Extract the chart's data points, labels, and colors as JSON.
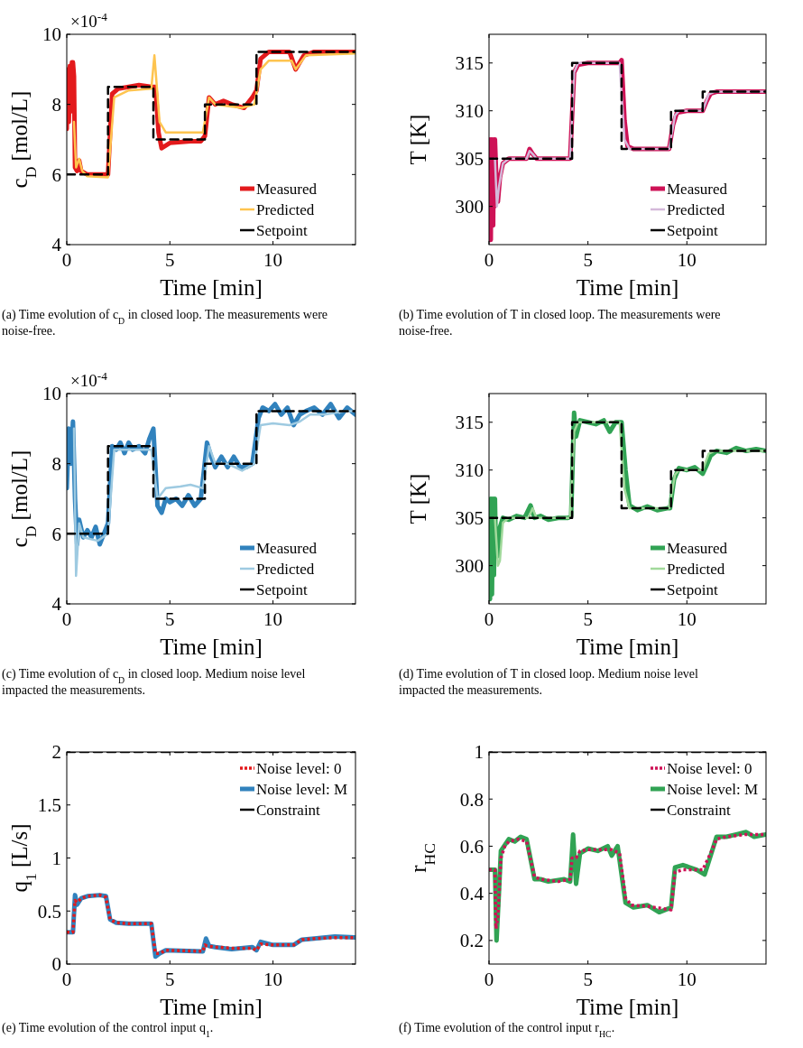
{
  "chart_data": [
    {
      "type": "line",
      "ylabel": "c$_{D}$ [mol/L]",
      "xlabel": "Time [min]",
      "xlim": [
        0,
        14
      ],
      "xticks": [
        0,
        5,
        10
      ],
      "ylim": [
        4,
        10
      ],
      "yticks": [
        4,
        6,
        8,
        10
      ],
      "legend": "bottom right",
      "annotations": [
        "×10$^{-4}$",
        "(a) Time evolution of c$_{D}$ in closed loop. The measurements were noise-free."
      ],
      "series": [
        {
          "name": "Measured",
          "color": "#e31a1c",
          "line_style": "solid",
          "x": [
            0,
            0.05,
            0.1,
            0.15,
            0.2,
            0.25,
            0.3,
            0.35,
            0.4,
            0.5,
            0.6,
            0.7,
            1,
            1.5,
            2,
            2.2,
            2.5,
            3,
            3.5,
            4.1,
            4.3,
            4.45,
            4.6,
            5,
            6,
            6.5,
            6.7,
            6.9,
            7.2,
            7.6,
            8,
            8.6,
            9,
            9.2,
            9.4,
            9.8,
            10.5,
            10.8,
            11.1,
            11.5,
            12,
            14
          ],
          "values": [
            7.3,
            9,
            7.5,
            9.1,
            7.8,
            9.2,
            9.2,
            8.8,
            6.2,
            6.1,
            6.4,
            6.1,
            6,
            6,
            6,
            8.3,
            8.45,
            8.5,
            8.55,
            8.5,
            8.5,
            7.2,
            6.75,
            6.9,
            6.95,
            6.95,
            7.1,
            8.2,
            8,
            8.1,
            8,
            7.9,
            8.2,
            8.4,
            9.3,
            9.5,
            9.5,
            9.5,
            9,
            9.4,
            9.5,
            9.5
          ]
        },
        {
          "name": "Predicted",
          "color": "#fec44f",
          "line_style": "solid",
          "x": [
            0.35,
            0.45,
            0.6,
            0.75,
            1,
            2,
            2.3,
            3,
            4.1,
            4.25,
            4.5,
            4.8,
            6.6,
            6.9,
            7.2,
            8.5,
            9.1,
            9.4,
            9.8,
            10.9,
            11.1,
            11.6,
            14
          ],
          "values": [
            7.5,
            6.2,
            6.45,
            6.1,
            5.95,
            5.92,
            8.2,
            8.4,
            8.45,
            9.4,
            7.5,
            7.2,
            7.2,
            8.2,
            8,
            7.9,
            8,
            9,
            9.25,
            9.25,
            9,
            9.4,
            9.45
          ]
        },
        {
          "name": "Setpoint",
          "color": "#000000",
          "line_style": "dashed",
          "x": [
            0,
            2,
            2,
            4.2,
            4.2,
            6.7,
            6.7,
            9.2,
            9.2,
            14
          ],
          "values": [
            6,
            6,
            8.5,
            8.5,
            7,
            7,
            8,
            8,
            9.5,
            9.5
          ]
        }
      ]
    },
    {
      "type": "line",
      "ylabel": "T [K]",
      "xlabel": "Time [min]",
      "xlim": [
        0,
        14
      ],
      "xticks": [
        0,
        5,
        10
      ],
      "ylim": [
        296,
        318
      ],
      "yticks": [
        300,
        305,
        310,
        315
      ],
      "legend": "bottom right",
      "annotations": [
        "(b) Time evolution of T in closed loop. The measurements were noise-free."
      ],
      "series": [
        {
          "name": "Measured",
          "color": "#ce1256",
          "line_style": "solid",
          "x": [
            0,
            0.03,
            0.06,
            0.09,
            0.12,
            0.15,
            0.18,
            0.21,
            0.24,
            0.27,
            0.3,
            0.35,
            0.45,
            0.55,
            0.7,
            1,
            1.9,
            2.05,
            2.2,
            2.4,
            3,
            4.1,
            4.3,
            4.5,
            5,
            6,
            6.6,
            6.7,
            6.85,
            7,
            7.3,
            8,
            9.1,
            9.3,
            9.5,
            10,
            10.8,
            11,
            11.2,
            11.5,
            12,
            14
          ],
          "values": [
            305,
            296.5,
            307,
            296.5,
            307,
            299,
            307,
            298,
            307,
            300,
            307,
            304,
            300.5,
            303,
            304.5,
            305,
            305,
            306,
            305.5,
            305,
            305,
            305,
            314,
            314.8,
            315,
            315,
            315,
            315.3,
            309,
            306.3,
            306,
            306,
            306,
            308.5,
            309.8,
            310,
            310,
            311,
            311.8,
            312,
            312,
            312
          ]
        },
        {
          "name": "Predicted",
          "color": "#d4b9da",
          "line_style": "solid",
          "x": [
            0.3,
            0.4,
            0.5,
            0.7,
            1,
            1.9,
            2.05,
            2.2,
            2.4,
            4.1,
            4.3,
            4.5,
            6.6,
            6.85,
            7.1,
            9.1,
            9.4,
            9.6,
            10.8,
            11.1,
            11.4,
            14
          ],
          "values": [
            305,
            300,
            302,
            304.5,
            305,
            305,
            305.8,
            305.5,
            305,
            305,
            314,
            315,
            315,
            307,
            306,
            306,
            309.5,
            310,
            310,
            311.7,
            312,
            312
          ]
        },
        {
          "name": "Setpoint",
          "color": "#000000",
          "line_style": "dashed",
          "x": [
            0,
            4.2,
            4.2,
            6.7,
            6.7,
            9.2,
            9.2,
            10.8,
            10.8,
            14
          ],
          "values": [
            305,
            305,
            315,
            315,
            306,
            306,
            310,
            310,
            312,
            312
          ]
        }
      ]
    },
    {
      "type": "line",
      "ylabel": "c$_{D}$ [mol/L]",
      "xlabel": "Time [min]",
      "xlim": [
        0,
        14
      ],
      "xticks": [
        0,
        5,
        10
      ],
      "ylim": [
        4,
        10
      ],
      "yticks": [
        4,
        6,
        8,
        10
      ],
      "legend": "bottom right",
      "annotations": [
        "×10$^{-4}$",
        "(c) Time evolution of c$_{D}$ in closed loop. Medium noise level impacted the measurements."
      ],
      "series": [
        {
          "name": "Measured",
          "color": "#3182bd",
          "line_style": "solid",
          "x": [
            0,
            0.1,
            0.2,
            0.3,
            0.4,
            0.5,
            0.6,
            0.8,
            1,
            1.2,
            1.4,
            1.6,
            1.8,
            2,
            2.2,
            2.4,
            2.6,
            2.8,
            3,
            3.2,
            3.5,
            3.8,
            4,
            4.2,
            4.4,
            4.6,
            4.8,
            5,
            5.3,
            5.6,
            5.9,
            6.2,
            6.5,
            6.8,
            7,
            7.2,
            7.5,
            7.8,
            8.1,
            8.4,
            8.7,
            9,
            9.3,
            9.5,
            9.8,
            10.1,
            10.4,
            10.7,
            11,
            11.3,
            11.6,
            12,
            12.4,
            12.8,
            13.2,
            13.6,
            14
          ],
          "values": [
            7.3,
            9,
            8,
            9.2,
            7,
            5.7,
            6.4,
            5.9,
            6.1,
            5.9,
            6.2,
            5.7,
            6,
            6.3,
            8.5,
            8.4,
            8.6,
            8.3,
            8.6,
            8.4,
            8.5,
            8.3,
            8.7,
            9,
            6.8,
            6.6,
            7,
            6.9,
            7,
            6.8,
            7.1,
            6.8,
            7,
            8.6,
            8.2,
            7.9,
            8.2,
            7.9,
            8.2,
            7.9,
            7.9,
            8,
            9.3,
            9.6,
            9.5,
            9.7,
            9.4,
            9.6,
            9.1,
            9.4,
            9.5,
            9.6,
            9.4,
            9.7,
            9.3,
            9.6,
            9.4
          ]
        },
        {
          "name": "Predicted",
          "color": "#9ecae1",
          "line_style": "solid",
          "x": [
            0.35,
            0.45,
            0.6,
            0.8,
            1.5,
            2,
            2.3,
            3,
            4.1,
            4.4,
            4.8,
            5.5,
            6,
            6.6,
            6.9,
            7.2,
            7.8,
            8.5,
            9.1,
            9.4,
            10,
            10.8,
            11.3,
            11.8,
            12.5,
            13.5,
            14
          ],
          "values": [
            9,
            4.8,
            6.3,
            5.9,
            5.8,
            6,
            8.4,
            8.4,
            8.4,
            7,
            7.3,
            7.35,
            7.4,
            7.3,
            8.5,
            8,
            8,
            7.8,
            8,
            9.1,
            9.15,
            9.1,
            9.2,
            9.4,
            9.4,
            9.5,
            9.5
          ]
        },
        {
          "name": "Setpoint",
          "color": "#000000",
          "line_style": "dashed",
          "x": [
            0,
            2,
            2,
            4.2,
            4.2,
            6.7,
            6.7,
            9.2,
            9.2,
            14
          ],
          "values": [
            6,
            6,
            8.5,
            8.5,
            7,
            7,
            8,
            8,
            9.5,
            9.5
          ]
        }
      ]
    },
    {
      "type": "line",
      "ylabel": "T [K]",
      "xlabel": "Time [min]",
      "xlim": [
        0,
        14
      ],
      "xticks": [
        0,
        5,
        10
      ],
      "ylim": [
        296,
        318
      ],
      "yticks": [
        300,
        305,
        310,
        315
      ],
      "legend": "bottom right",
      "annotations": [
        "(d) Time evolution of T in closed loop. Medium noise level impacted the measurements."
      ],
      "series": [
        {
          "name": "Measured",
          "color": "#31a354",
          "line_style": "solid",
          "x": [
            0,
            0.05,
            0.1,
            0.15,
            0.2,
            0.25,
            0.3,
            0.35,
            0.45,
            0.55,
            0.7,
            1,
            1.4,
            1.8,
            2.1,
            2.3,
            2.6,
            3,
            3.5,
            4,
            4.15,
            4.3,
            4.4,
            4.6,
            5,
            5.4,
            5.8,
            6.1,
            6.4,
            6.7,
            6.9,
            7.1,
            7.5,
            8,
            8.5,
            9,
            9.15,
            9.35,
            9.6,
            10,
            10.4,
            10.8,
            11,
            11.2,
            11.5,
            12,
            12.5,
            13,
            13.5,
            14
          ],
          "values": [
            305,
            296.5,
            307,
            297,
            307,
            299,
            307,
            301,
            301,
            304,
            305,
            304.8,
            305.2,
            305,
            306.3,
            305,
            305.2,
            304.8,
            305,
            305,
            305.2,
            316,
            313.5,
            315.2,
            315,
            314.8,
            315.2,
            314,
            315,
            315,
            310,
            306.3,
            305.8,
            306.2,
            305.8,
            306,
            306,
            309,
            310.2,
            310,
            310.3,
            309.6,
            310.5,
            311.5,
            312,
            311.8,
            312.3,
            312,
            312.2,
            312
          ]
        },
        {
          "name": "Predicted",
          "color": "#a1d99b",
          "line_style": "solid",
          "x": [
            0.3,
            0.45,
            0.55,
            0.7,
            1,
            2,
            2.2,
            2.4,
            4.1,
            4.3,
            4.5,
            6.6,
            6.85,
            7.1,
            9.1,
            9.4,
            9.6,
            10.8,
            11.1,
            11.4,
            14
          ],
          "values": [
            305,
            300,
            300.5,
            304.5,
            305,
            305,
            306,
            305,
            305,
            314,
            315,
            315,
            308,
            306,
            306,
            309.5,
            310,
            310,
            311.7,
            312,
            312
          ]
        },
        {
          "name": "Setpoint",
          "color": "#000000",
          "line_style": "dashed",
          "x": [
            0,
            4.2,
            4.2,
            6.7,
            6.7,
            9.2,
            9.2,
            10.8,
            10.8,
            14
          ],
          "values": [
            305,
            305,
            315,
            315,
            306,
            306,
            310,
            310,
            312,
            312
          ]
        }
      ]
    },
    {
      "type": "line",
      "ylabel": "q$_{1}$ [L/s]",
      "xlabel": "Time [min]",
      "xlim": [
        0,
        14
      ],
      "xticks": [
        0,
        5,
        10
      ],
      "ylim": [
        0,
        2
      ],
      "yticks": [
        0,
        0.5,
        1,
        1.5,
        2
      ],
      "legend": "top right",
      "annotations": [
        "(e) Time evolution of the control input q$_{1}$."
      ],
      "series": [
        {
          "name": "Noise level: 0",
          "color": "#e31a1c",
          "line_style": "dotted",
          "x": [
            0,
            0.3,
            0.4,
            0.5,
            0.7,
            1,
            1.6,
            1.9,
            2.1,
            2.4,
            3,
            4.1,
            4.3,
            4.5,
            4.8,
            6.6,
            6.7,
            6.8,
            7.2,
            8,
            9,
            9.2,
            9.4,
            10,
            11,
            11.4,
            12,
            13,
            14
          ],
          "values": [
            0.3,
            0.3,
            0.6,
            0.58,
            0.62,
            0.64,
            0.65,
            0.63,
            0.42,
            0.39,
            0.38,
            0.38,
            0.1,
            0.1,
            0.13,
            0.12,
            0.18,
            0.17,
            0.16,
            0.15,
            0.15,
            0.13,
            0.19,
            0.18,
            0.18,
            0.23,
            0.24,
            0.25,
            0.25
          ]
        },
        {
          "name": "Noise level: M",
          "color": "#3182bd",
          "line_style": "solid",
          "x": [
            0,
            0.3,
            0.4,
            0.5,
            0.7,
            1,
            1.6,
            1.9,
            2.1,
            2.4,
            3,
            4.1,
            4.3,
            4.5,
            4.8,
            6.6,
            6.75,
            6.9,
            7.2,
            8,
            9,
            9.2,
            9.4,
            10,
            11,
            11.4,
            12,
            13,
            14
          ],
          "values": [
            0.3,
            0.3,
            0.65,
            0.56,
            0.62,
            0.64,
            0.65,
            0.64,
            0.42,
            0.39,
            0.38,
            0.38,
            0.07,
            0.1,
            0.13,
            0.12,
            0.24,
            0.17,
            0.16,
            0.14,
            0.16,
            0.13,
            0.21,
            0.18,
            0.18,
            0.23,
            0.24,
            0.26,
            0.25
          ]
        },
        {
          "name": "Constraint",
          "color": "#000000",
          "line_style": "dashed",
          "x": [
            0,
            14
          ],
          "values": [
            2,
            2
          ]
        }
      ]
    },
    {
      "type": "line",
      "ylabel": "r$_{HC}$",
      "xlabel": "Time [min]",
      "xlim": [
        0,
        14
      ],
      "xticks": [
        0,
        5,
        10
      ],
      "ylim": [
        0.1,
        1
      ],
      "yticks": [
        0.2,
        0.4,
        0.6,
        0.8,
        1
      ],
      "legend": "top right",
      "annotations": [
        "(f) Time evolution of the control input r$_{HC}$."
      ],
      "series": [
        {
          "name": "Noise level: 0",
          "color": "#ce1256",
          "line_style": "dotted",
          "x": [
            0,
            0.3,
            0.35,
            0.45,
            0.6,
            0.8,
            1,
            1.5,
            1.9,
            2.3,
            2.6,
            3.5,
            4.1,
            4.2,
            4.4,
            4.6,
            5,
            6.2,
            6.6,
            6.9,
            7.2,
            8,
            9.2,
            9.4,
            9.8,
            10.8,
            11.2,
            11.5,
            12,
            13,
            14
          ],
          "values": [
            0.5,
            0.5,
            0.25,
            0.3,
            0.55,
            0.6,
            0.62,
            0.63,
            0.62,
            0.47,
            0.46,
            0.45,
            0.46,
            0.55,
            0.55,
            0.58,
            0.585,
            0.585,
            0.57,
            0.38,
            0.35,
            0.345,
            0.33,
            0.49,
            0.5,
            0.5,
            0.57,
            0.63,
            0.64,
            0.65,
            0.65
          ]
        },
        {
          "name": "Noise level: M",
          "color": "#31a354",
          "line_style": "solid",
          "x": [
            0,
            0.3,
            0.38,
            0.5,
            0.6,
            1,
            1.3,
            1.6,
            1.9,
            2.3,
            2.6,
            3,
            3.8,
            4.1,
            4.25,
            4.4,
            4.6,
            5,
            5.5,
            6,
            6.2,
            6.5,
            6.9,
            7.3,
            8,
            8.6,
            9.2,
            9.4,
            9.8,
            10.5,
            10.9,
            11.2,
            11.5,
            12,
            12.5,
            13,
            13.4,
            14
          ],
          "values": [
            0.5,
            0.5,
            0.2,
            0.4,
            0.58,
            0.63,
            0.62,
            0.64,
            0.63,
            0.46,
            0.46,
            0.45,
            0.46,
            0.45,
            0.65,
            0.44,
            0.57,
            0.59,
            0.58,
            0.6,
            0.56,
            0.6,
            0.36,
            0.34,
            0.35,
            0.32,
            0.34,
            0.51,
            0.52,
            0.5,
            0.48,
            0.56,
            0.64,
            0.64,
            0.65,
            0.66,
            0.64,
            0.65
          ]
        },
        {
          "name": "Constraint",
          "color": "#000000",
          "line_style": "dashed",
          "x": [
            0,
            14
          ],
          "values": [
            1,
            1
          ]
        }
      ]
    }
  ]
}
